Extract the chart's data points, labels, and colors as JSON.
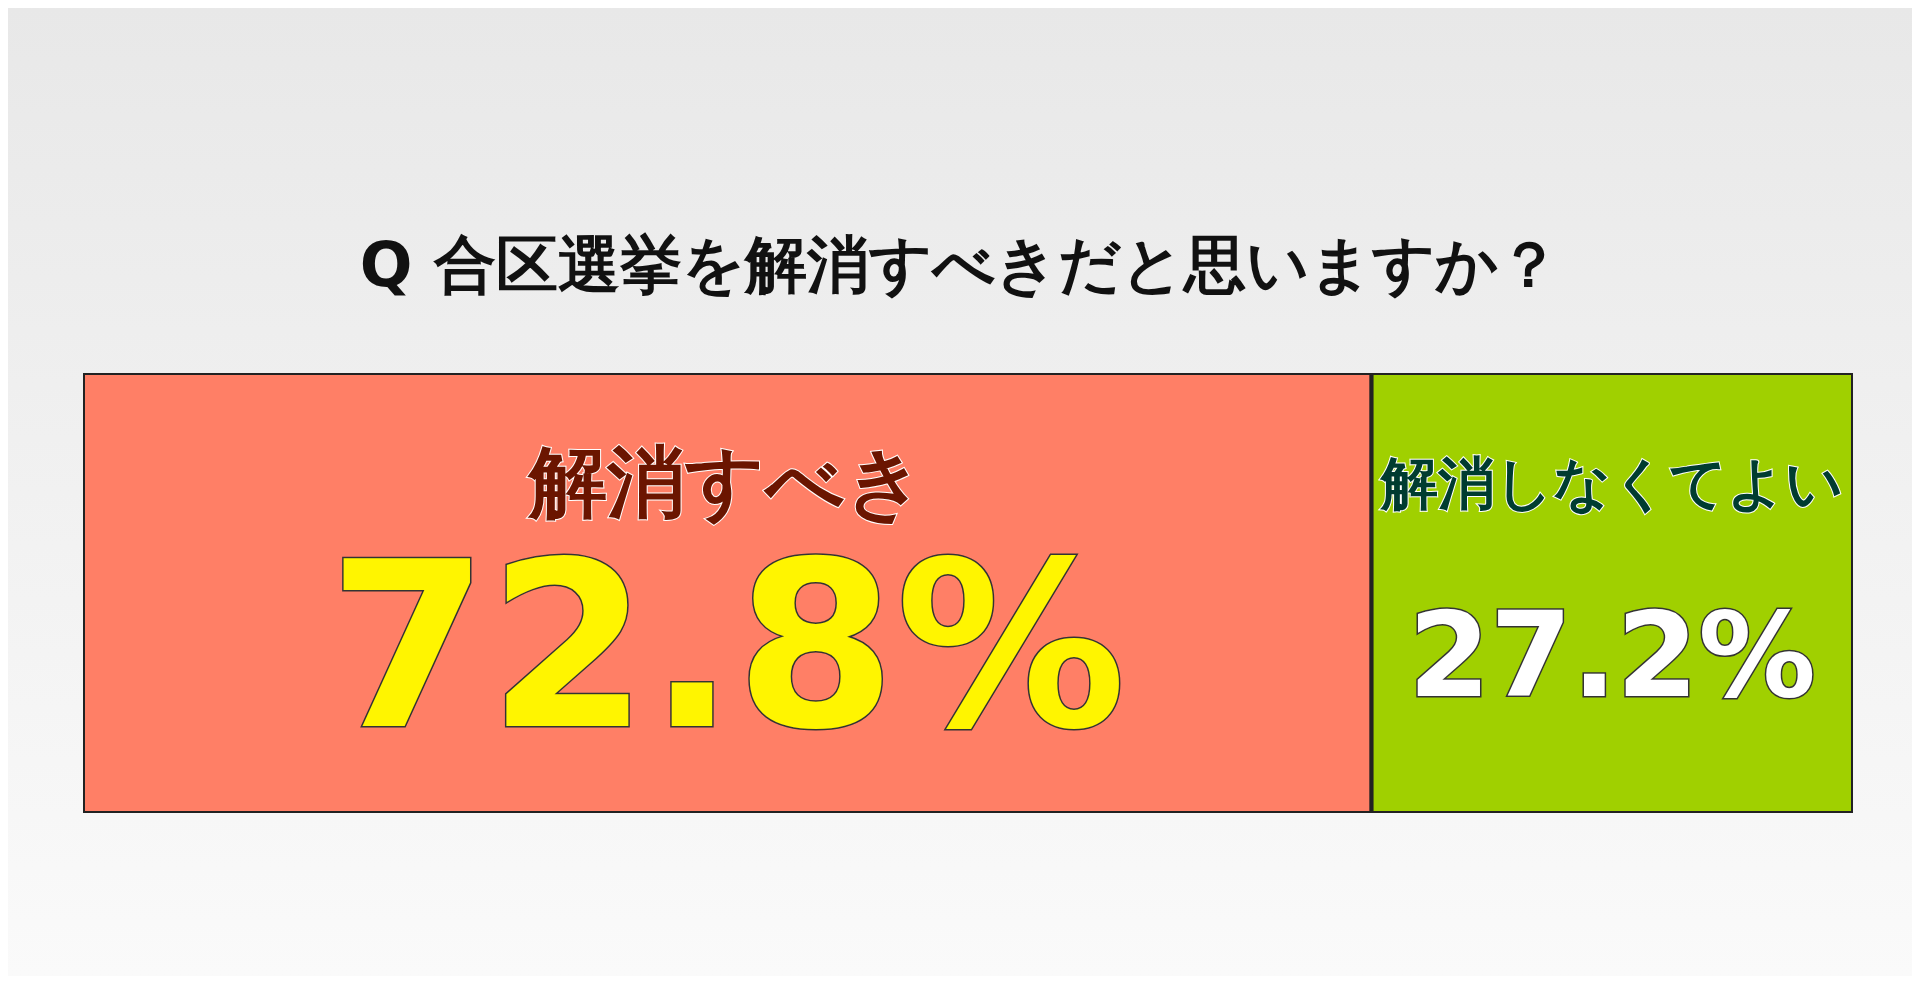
{
  "chart_data": {
    "type": "bar",
    "title": "Q 合区選挙を解消すべきだと思いますか？",
    "orientation": "horizontal",
    "stacked": true,
    "categories": [
      null
    ],
    "legend": false,
    "tick_labels": false,
    "series": [
      {
        "name": "解消すべき",
        "color": "#ff7f66",
        "values": [
          72.8
        ],
        "value_labels": [
          "72.8%"
        ]
      },
      {
        "name": "解消しなくてよい",
        "color": "#a0d000",
        "values": [
          27.2
        ],
        "value_labels": [
          "27.2%"
        ]
      }
    ]
  }
}
